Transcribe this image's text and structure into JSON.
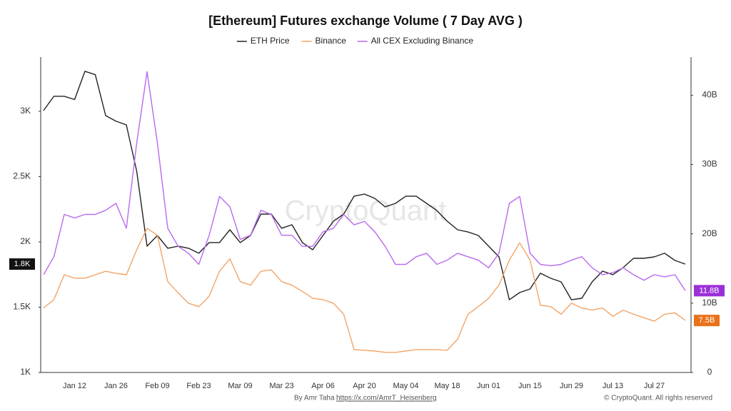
{
  "chart_data": {
    "type": "line",
    "title": "[Ethereum] Futures exchange Volume ( 7 Day AVG )",
    "watermark": "CryptoQuant",
    "footer_left": "By Amr Taha",
    "footer_link": "https://x.com/AmrT_Heisenberg",
    "footer_right": "© CryptoQuant. All rights reserved",
    "categories": [
      null,
      null,
      null,
      "Jan 12",
      null,
      null,
      null,
      "Jan 26",
      null,
      null,
      null,
      "Feb 09",
      null,
      null,
      null,
      "Feb 23",
      null,
      null,
      null,
      "Mar 09",
      null,
      null,
      null,
      "Mar 23",
      null,
      null,
      null,
      "Apr 06",
      null,
      null,
      null,
      "Apr 20",
      null,
      null,
      null,
      "May 04",
      null,
      null,
      null,
      "May 18",
      null,
      null,
      null,
      "Jun 01",
      null,
      null,
      null,
      "Jun 15",
      null,
      null,
      null,
      "Jun 29",
      null,
      null,
      null,
      "Jul 13",
      null,
      null,
      null,
      "Jul 27",
      null,
      null,
      null
    ],
    "ylim": [
      1000,
      3415
    ],
    "yticks": [
      {
        "value": 1000,
        "label": "1K"
      },
      {
        "value": 1500,
        "label": "1.5K"
      },
      {
        "value": 2000,
        "label": "2K"
      },
      {
        "value": 2500,
        "label": "2.5K"
      },
      {
        "value": 3000,
        "label": "3K"
      }
    ],
    "y2lim": [
      0,
      45.5
    ],
    "y2ticks": [
      0,
      {
        "value": 10,
        "label": "10B"
      },
      {
        "value": 20,
        "label": "20B"
      },
      {
        "value": 30,
        "label": "30B"
      },
      {
        "value": 40,
        "label": "40B"
      }
    ],
    "grid": false,
    "legend": "top",
    "series": [
      {
        "name": "ETH Price",
        "color": "#222222",
        "label_color": "#111111",
        "axis": "y",
        "values": [
          3006,
          3115,
          3115,
          3090,
          3306,
          3280,
          2967,
          2924,
          2896,
          2541,
          1967,
          2049,
          1951,
          1967,
          1951,
          1913,
          1995,
          1995,
          2093,
          1995,
          2049,
          2213,
          2213,
          2104,
          2131,
          1995,
          1940,
          2049,
          2158,
          2213,
          2350,
          2366,
          2333,
          2268,
          2295,
          2350,
          2350,
          2295,
          2240,
          2158,
          2093,
          2076,
          2049,
          1967,
          1885,
          1557,
          1612,
          1639,
          1760,
          1721,
          1694,
          1557,
          1568,
          1694,
          1776,
          1749,
          1803,
          1874,
          1874,
          1885,
          1913,
          1858,
          1830
        ],
        "value_labels": [
          null,
          null,
          null,
          null,
          null,
          null,
          null,
          null,
          null,
          null,
          null,
          null,
          null,
          null,
          null,
          null,
          null,
          null,
          null,
          null,
          null,
          null,
          null,
          null,
          null,
          null,
          null,
          null,
          null,
          null,
          null,
          null,
          null,
          null,
          null,
          null,
          null,
          null,
          null,
          null,
          null,
          null,
          null,
          null,
          null,
          null,
          null,
          null,
          null,
          null,
          null,
          null,
          null,
          null,
          null,
          null,
          null,
          null,
          null,
          null,
          null,
          null,
          "1.8K"
        ]
      },
      {
        "name": "Binance",
        "color": "#f2a467",
        "label_color": "#e8711a",
        "axis": "y2",
        "values": [
          9.3,
          10.5,
          14.1,
          13.6,
          13.6,
          14.1,
          14.6,
          14.3,
          14.1,
          17.7,
          20.8,
          19.8,
          13.1,
          11.5,
          10.0,
          9.5,
          11.0,
          14.6,
          16.4,
          13.1,
          12.6,
          14.6,
          14.8,
          13.1,
          12.6,
          11.7,
          10.7,
          10.5,
          10.0,
          8.4,
          3.3,
          3.2,
          3.1,
          2.9,
          2.9,
          3.1,
          3.3,
          3.3,
          3.3,
          3.2,
          4.8,
          8.4,
          9.5,
          10.7,
          12.6,
          16.2,
          18.7,
          16.2,
          9.7,
          9.5,
          8.4,
          10.0,
          9.3,
          9.0,
          9.3,
          8.1,
          9.0,
          8.4,
          7.9,
          7.4,
          8.4,
          8.6,
          7.5
        ],
        "value_labels": [
          null,
          null,
          null,
          null,
          null,
          null,
          null,
          null,
          null,
          null,
          null,
          null,
          null,
          null,
          null,
          null,
          null,
          null,
          null,
          null,
          null,
          null,
          null,
          null,
          null,
          null,
          null,
          null,
          null,
          null,
          null,
          null,
          null,
          null,
          null,
          null,
          null,
          null,
          null,
          null,
          null,
          null,
          null,
          null,
          null,
          null,
          null,
          null,
          null,
          null,
          null,
          null,
          null,
          null,
          null,
          null,
          null,
          null,
          null,
          null,
          null,
          null,
          "7.5B"
        ]
      },
      {
        "name": "All CEX Excluding Binance",
        "color": "#b76af0",
        "label_color": "#9b30d9",
        "axis": "y2",
        "values": [
          14.1,
          16.7,
          22.8,
          22.3,
          22.8,
          22.8,
          23.4,
          24.4,
          20.8,
          33.1,
          43.4,
          33.1,
          20.8,
          18.2,
          17.2,
          15.6,
          19.8,
          25.4,
          23.9,
          19.2,
          19.8,
          23.4,
          22.8,
          19.8,
          19.8,
          18.2,
          18.2,
          20.3,
          20.8,
          22.8,
          21.3,
          21.8,
          20.3,
          18.2,
          15.6,
          15.6,
          16.7,
          17.2,
          15.6,
          16.2,
          17.2,
          16.7,
          16.2,
          15.1,
          17.2,
          24.4,
          25.4,
          17.2,
          15.6,
          15.4,
          15.6,
          16.2,
          16.7,
          15.1,
          14.1,
          14.4,
          15.1,
          14.1,
          13.3,
          14.1,
          13.8,
          14.1,
          11.8
        ],
        "value_labels": [
          null,
          null,
          null,
          null,
          null,
          null,
          null,
          null,
          null,
          null,
          null,
          null,
          null,
          null,
          null,
          null,
          null,
          null,
          null,
          null,
          null,
          null,
          null,
          null,
          null,
          null,
          null,
          null,
          null,
          null,
          null,
          null,
          null,
          null,
          null,
          null,
          null,
          null,
          null,
          null,
          null,
          null,
          null,
          null,
          null,
          null,
          null,
          null,
          null,
          null,
          null,
          null,
          null,
          null,
          null,
          null,
          null,
          null,
          null,
          null,
          null,
          null,
          "11.8B"
        ]
      }
    ]
  }
}
